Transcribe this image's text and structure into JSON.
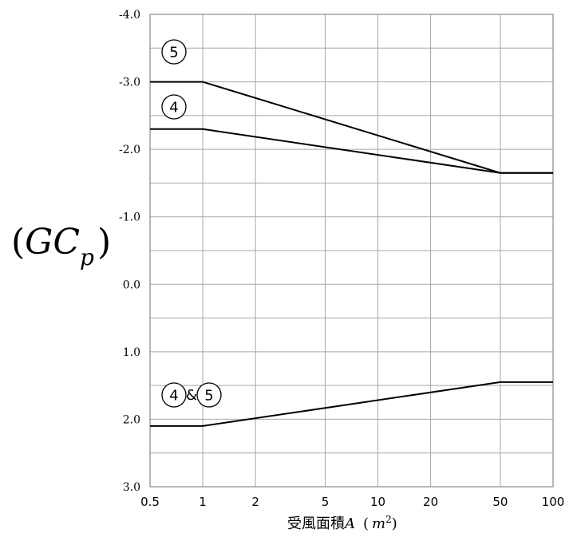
{
  "chart_data": {
    "type": "line",
    "x_scale": "log",
    "xlim": [
      0.5,
      100
    ],
    "ylim": [
      -4.0,
      3.0
    ],
    "y_inverted": true,
    "grid": true,
    "x_ticks": [
      "0.5",
      "1",
      "2",
      "5",
      "10",
      "20",
      "50",
      "100"
    ],
    "y_ticks": [
      "-4.0",
      "-3.0",
      "-2.0",
      "-1.0",
      "0.0",
      "1.0",
      "2.0",
      "3.0"
    ],
    "ylabel": {
      "open": "(",
      "main": "GC",
      "sub": "p",
      "close": ")"
    },
    "xlabel": {
      "text": "受風面積",
      "var": "A",
      "unit": "m",
      "exp": "2"
    },
    "series": [
      {
        "x": [
          0.5,
          1,
          50,
          100
        ],
        "y": [
          -3.0,
          -3.0,
          -1.65,
          -1.65
        ]
      },
      {
        "x": [
          0.5,
          1,
          50,
          100
        ],
        "y": [
          -2.3,
          -2.3,
          -1.65,
          -1.65
        ]
      },
      {
        "x": [
          0.5,
          1,
          50,
          100
        ],
        "y": [
          2.1,
          2.1,
          1.45,
          1.45
        ]
      }
    ],
    "annotations": [
      {
        "labels": [
          "5"
        ],
        "amp": ""
      },
      {
        "labels": [
          "4"
        ],
        "amp": ""
      },
      {
        "labels": [
          "4",
          "5"
        ],
        "amp": "&"
      }
    ]
  }
}
